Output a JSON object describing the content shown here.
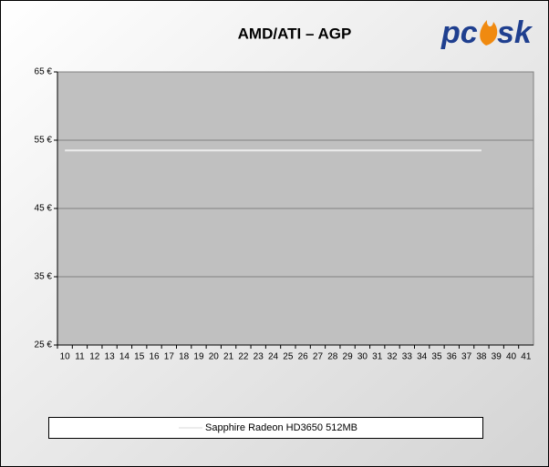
{
  "chart_data": {
    "type": "line",
    "title": "AMD/ATI – AGP",
    "logo_left": "pc",
    "logo_right": "sk",
    "categories": [
      "10",
      "11",
      "12",
      "13",
      "14",
      "15",
      "16",
      "17",
      "18",
      "19",
      "20",
      "21",
      "22",
      "23",
      "24",
      "25",
      "26",
      "27",
      "28",
      "29",
      "30",
      "31",
      "32",
      "33",
      "34",
      "35",
      "36",
      "37",
      "38",
      "39",
      "40",
      "41"
    ],
    "series": [
      {
        "name": "Sapphire Radeon HD3650 512MB",
        "color": "#ececec",
        "values": [
          53.5,
          53.5,
          53.5,
          53.5,
          53.5,
          53.5,
          53.5,
          53.5,
          53.5,
          53.5,
          53.5,
          53.5,
          53.5,
          53.5,
          53.5,
          53.5,
          53.5,
          53.5,
          53.5,
          53.5,
          53.5,
          53.5,
          53.5,
          53.5,
          53.5,
          53.5,
          53.5,
          53.5,
          53.5,
          null,
          null,
          null
        ]
      }
    ],
    "ylim": [
      25,
      65
    ],
    "yticks": [
      {
        "value": 25,
        "label": "25 €"
      },
      {
        "value": 35,
        "label": "35 €"
      },
      {
        "value": 45,
        "label": "45 €"
      },
      {
        "value": 55,
        "label": "55 €"
      },
      {
        "value": 65,
        "label": "65 €"
      }
    ],
    "grid": true,
    "legend": "bottom"
  }
}
